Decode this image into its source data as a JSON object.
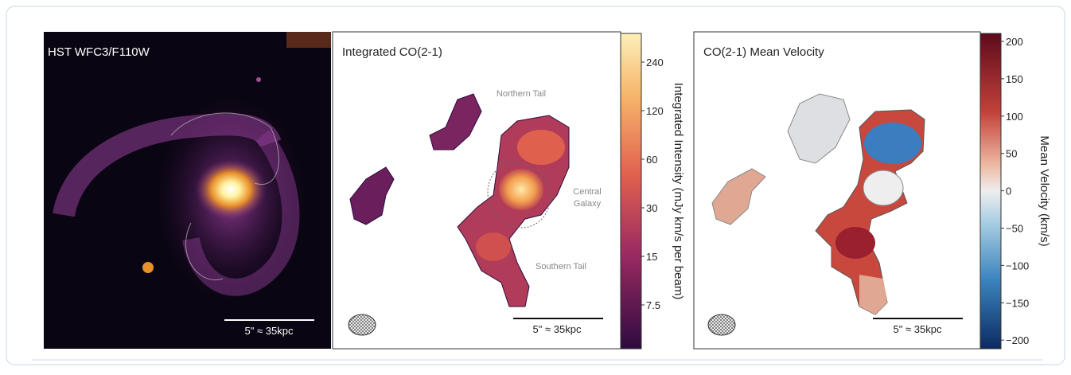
{
  "panels": [
    {
      "title": "HST WFC3/F110W",
      "scale_bar": "5\" ≈ 35kpc"
    },
    {
      "title": "Integrated CO(2-1)",
      "scale_bar": "5\" ≈ 35kpc",
      "annotations": {
        "northern_tail": "Northern Tail",
        "central_galaxy": [
          "Central",
          "Galaxy"
        ],
        "southern_tail": "Southern Tail"
      },
      "colorbar": {
        "label": "Integrated Intensity (mJy km/s per beam)",
        "ticks": [
          "240",
          "120",
          "60",
          "30",
          "15",
          "7.5"
        ]
      }
    },
    {
      "title": "CO(2-1) Mean Velocity",
      "scale_bar": "5\" ≈ 35kpc",
      "colorbar": {
        "label": "Mean Velocity (km/s)",
        "ticks": [
          "200",
          "150",
          "100",
          "50",
          "0",
          "−50",
          "−100",
          "−150",
          "−200"
        ]
      }
    }
  ]
}
